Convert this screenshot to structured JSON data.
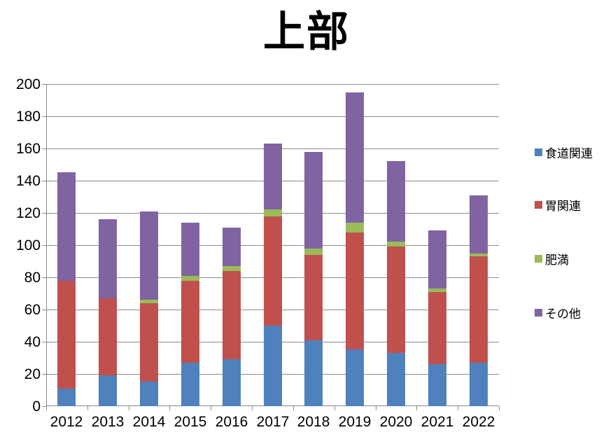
{
  "chart_data": {
    "type": "bar",
    "stacked": true,
    "title": "上部",
    "categories": [
      "2012",
      "2013",
      "2014",
      "2015",
      "2016",
      "2017",
      "2018",
      "2019",
      "2020",
      "2021",
      "2022"
    ],
    "series": [
      {
        "name": "食道関連",
        "color": "#4F81BD",
        "values": [
          11,
          19,
          15,
          27,
          29,
          50,
          41,
          35,
          33,
          26,
          27
        ]
      },
      {
        "name": "胃関連",
        "color": "#C0504D",
        "values": [
          67,
          48,
          49,
          51,
          55,
          68,
          53,
          73,
          66,
          45,
          66
        ]
      },
      {
        "name": "肥満",
        "color": "#9BBB59",
        "values": [
          0,
          0,
          2,
          3,
          3,
          4,
          4,
          6,
          3,
          2,
          2
        ]
      },
      {
        "name": "その他",
        "color": "#8064A2",
        "values": [
          67,
          49,
          55,
          33,
          24,
          41,
          60,
          81,
          50,
          36,
          36
        ]
      }
    ],
    "totals": [
      145,
      116,
      121,
      114,
      111,
      163,
      158,
      195,
      152,
      109,
      131
    ],
    "xlabel": "",
    "ylabel": "",
    "ylim": [
      0,
      200
    ],
    "ytick_step": 20,
    "yticks": [
      0,
      20,
      40,
      60,
      80,
      100,
      120,
      140,
      160,
      180,
      200
    ],
    "grid": true,
    "legend_position": "right",
    "colors": {
      "grid": "#8C8C8C",
      "axis": "#8C8C8C",
      "text": "#000000",
      "background": "#FFFFFF"
    }
  }
}
